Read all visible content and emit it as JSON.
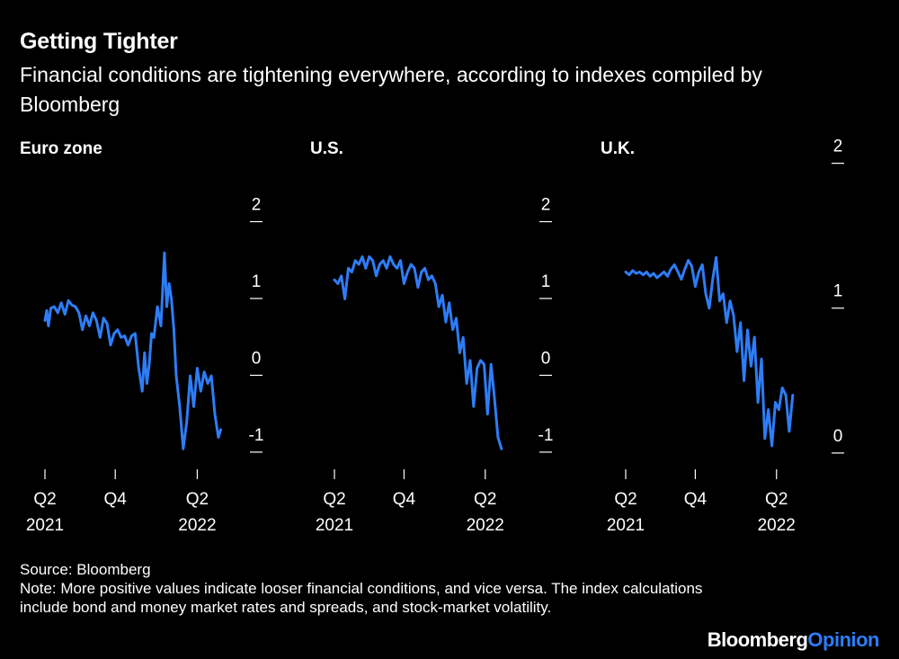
{
  "title": "Getting Tighter",
  "subtitle": "Financial conditions are tightening everywhere, according to indexes compiled by Bloomberg",
  "source": "Source: Bloomberg",
  "note": "Note: More positive values indicate looser financial conditions, and vice versa. The index calculations include bond and money market rates and spreads, and stock-market volatility.",
  "brand": {
    "main": "Bloomberg",
    "accent": "Opinion"
  },
  "colors": {
    "background": "#000000",
    "text": "#ffffff",
    "line": "#2e7df7"
  },
  "chart_data": [
    {
      "type": "line",
      "title": "Euro zone",
      "x_ticks": [
        {
          "x": 0,
          "line1": "Q2",
          "line2": "2021"
        },
        {
          "x": 6,
          "line1": "Q4",
          "line2": ""
        },
        {
          "x": 13,
          "line1": "Q2",
          "line2": "2022"
        }
      ],
      "x_range": [
        0,
        15.5
      ],
      "y_ticks": [
        "2",
        "1",
        "0",
        "-1"
      ],
      "y_tick_values": [
        2,
        1,
        0,
        -1
      ],
      "ylim": [
        -1.2,
        2.1
      ],
      "series": [
        {
          "name": "Euro zone",
          "x": [
            0,
            0.15,
            0.3,
            0.5,
            0.8,
            1.1,
            1.4,
            1.7,
            2.0,
            2.3,
            2.6,
            2.9,
            3.2,
            3.5,
            3.8,
            4.1,
            4.4,
            4.7,
            5.0,
            5.3,
            5.6,
            5.9,
            6.2,
            6.5,
            6.8,
            7.1,
            7.4,
            7.7,
            8.0,
            8.3,
            8.5,
            8.7,
            8.9,
            9.1,
            9.3,
            9.6,
            9.9,
            10.2,
            10.4,
            10.6,
            10.8,
            11.0,
            11.2,
            11.5,
            11.8,
            12.1,
            12.4,
            12.7,
            13.0,
            13.3,
            13.6,
            13.9,
            14.2,
            14.5,
            14.8,
            15.0
          ],
          "values": [
            0.62,
            0.75,
            0.55,
            0.78,
            0.8,
            0.72,
            0.85,
            0.7,
            0.88,
            0.82,
            0.8,
            0.72,
            0.5,
            0.68,
            0.55,
            0.72,
            0.62,
            0.4,
            0.65,
            0.58,
            0.3,
            0.45,
            0.5,
            0.4,
            0.42,
            0.3,
            0.42,
            0.45,
            0.0,
            -0.3,
            0.2,
            -0.2,
            0.05,
            0.45,
            0.4,
            0.8,
            0.55,
            1.5,
            0.8,
            1.1,
            0.9,
            0.5,
            -0.1,
            -0.5,
            -1.05,
            -0.7,
            -0.1,
            -0.5,
            0.0,
            -0.3,
            -0.05,
            -0.2,
            -0.1,
            -0.6,
            -0.9,
            -0.8
          ]
        }
      ]
    },
    {
      "type": "line",
      "title": "U.S.",
      "x_ticks": [
        {
          "x": 0,
          "line1": "Q2",
          "line2": "2021"
        },
        {
          "x": 6,
          "line1": "Q4",
          "line2": ""
        },
        {
          "x": 13,
          "line1": "Q2",
          "line2": "2022"
        }
      ],
      "x_range": [
        0,
        15.5
      ],
      "y_ticks": [
        "2",
        "1",
        "0",
        "-1"
      ],
      "y_tick_values": [
        2,
        1,
        0,
        -1
      ],
      "ylim": [
        -1.2,
        2.1
      ],
      "series": [
        {
          "name": "U.S.",
          "x": [
            0,
            0.3,
            0.6,
            0.9,
            1.2,
            1.5,
            1.8,
            2.1,
            2.4,
            2.7,
            3.0,
            3.3,
            3.6,
            3.9,
            4.2,
            4.5,
            4.8,
            5.1,
            5.4,
            5.7,
            6.0,
            6.3,
            6.6,
            6.9,
            7.2,
            7.5,
            7.8,
            8.1,
            8.4,
            8.7,
            9.0,
            9.3,
            9.6,
            9.9,
            10.2,
            10.5,
            10.8,
            11.1,
            11.4,
            11.7,
            12.0,
            12.3,
            12.6,
            12.9,
            13.2,
            13.5,
            13.8,
            14.1,
            14.4
          ],
          "values": [
            1.15,
            1.1,
            1.2,
            0.9,
            1.3,
            1.25,
            1.4,
            1.35,
            1.45,
            1.3,
            1.45,
            1.4,
            1.2,
            1.35,
            1.4,
            1.3,
            1.45,
            1.35,
            1.3,
            1.4,
            1.1,
            1.25,
            1.35,
            1.3,
            1.05,
            1.25,
            1.3,
            1.15,
            1.2,
            1.1,
            0.8,
            0.95,
            0.6,
            0.85,
            0.5,
            0.65,
            0.2,
            0.4,
            -0.2,
            0.1,
            -0.5,
            0.0,
            0.1,
            0.05,
            -0.6,
            0.05,
            -0.4,
            -0.9,
            -1.05
          ]
        }
      ]
    },
    {
      "type": "line",
      "title": "U.K.",
      "x_ticks": [
        {
          "x": 0,
          "line1": "Q2",
          "line2": "2021"
        },
        {
          "x": 6,
          "line1": "Q4",
          "line2": ""
        },
        {
          "x": 13,
          "line1": "Q2",
          "line2": "2022"
        }
      ],
      "x_range": [
        0,
        15.5
      ],
      "y_ticks": [
        "2",
        "1",
        "0"
      ],
      "y_tick_values": [
        2,
        1,
        0
      ],
      "ylim": [
        -0.1,
        1.65
      ],
      "series": [
        {
          "name": "U.K.",
          "x": [
            0,
            0.3,
            0.6,
            0.9,
            1.2,
            1.5,
            1.8,
            2.1,
            2.4,
            2.7,
            3.0,
            3.3,
            3.6,
            3.9,
            4.2,
            4.5,
            4.8,
            5.1,
            5.4,
            5.7,
            6.0,
            6.3,
            6.6,
            6.9,
            7.2,
            7.5,
            7.8,
            8.1,
            8.4,
            8.7,
            9.0,
            9.3,
            9.6,
            9.9,
            10.2,
            10.5,
            10.8,
            11.1,
            11.4,
            11.7,
            12.0,
            12.3,
            12.6,
            12.9,
            13.2,
            13.5,
            13.8,
            14.1,
            14.4
          ],
          "values": [
            1.2,
            1.18,
            1.21,
            1.19,
            1.2,
            1.18,
            1.2,
            1.17,
            1.19,
            1.16,
            1.18,
            1.2,
            1.17,
            1.22,
            1.25,
            1.2,
            1.15,
            1.22,
            1.28,
            1.24,
            1.1,
            1.2,
            1.25,
            1.05,
            0.95,
            1.15,
            1.3,
            1.0,
            1.05,
            0.85,
            1.0,
            0.9,
            0.65,
            0.85,
            0.45,
            0.8,
            0.55,
            0.75,
            0.3,
            0.6,
            0.05,
            0.25,
            0.0,
            0.3,
            0.25,
            0.4,
            0.35,
            0.1,
            0.35
          ]
        }
      ]
    }
  ]
}
